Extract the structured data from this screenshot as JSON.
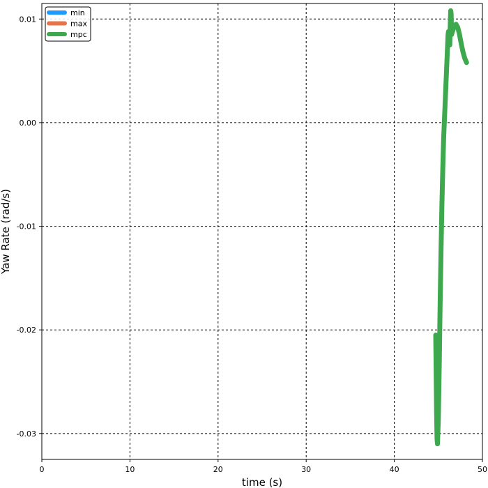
{
  "chart_data": {
    "type": "line",
    "title": "",
    "xlabel": "time (s)",
    "ylabel": "Yaw Rate (rad/s)",
    "xlim": [
      0,
      50
    ],
    "ylim": [
      -0.0325,
      0.0115
    ],
    "xticks": [
      0,
      10,
      20,
      30,
      40,
      50
    ],
    "xtick_labels": [
      "0",
      "10",
      "20",
      "30",
      "40",
      "50"
    ],
    "yticks": [
      0.01,
      0.0,
      -0.01,
      -0.02,
      -0.03
    ],
    "ytick_labels": [
      "0.01",
      "0.00",
      "-0.01",
      "-0.02",
      "-0.03"
    ],
    "grid": true,
    "grid_style": "dotted black",
    "legend_position": "top-left",
    "series": [
      {
        "name": "min",
        "color": "#1f9bff",
        "x": [],
        "y": []
      },
      {
        "name": "max",
        "color": "#e8734a",
        "x": [],
        "y": []
      },
      {
        "name": "mpc",
        "color": "#3da84e",
        "x": [
          44.7,
          44.8,
          44.85,
          44.9,
          45.0,
          45.1,
          45.2,
          45.3,
          45.4,
          45.5,
          45.6,
          45.7,
          45.8,
          45.9,
          46.0,
          46.1,
          46.15,
          46.2,
          46.3,
          46.35,
          46.4,
          46.45,
          46.5,
          46.6,
          46.8,
          47.0,
          47.2,
          47.4,
          47.6,
          47.8,
          48.0,
          48.2
        ],
        "y": [
          -0.0205,
          -0.028,
          -0.0305,
          -0.031,
          -0.0285,
          -0.0235,
          -0.0175,
          -0.0125,
          -0.008,
          -0.0045,
          -0.0015,
          0.0005,
          0.0025,
          0.0045,
          0.0065,
          0.0085,
          0.0088,
          0.0083,
          0.0075,
          0.0095,
          0.0108,
          0.0105,
          0.0085,
          0.0088,
          0.0093,
          0.0095,
          0.0092,
          0.0085,
          0.0076,
          0.0068,
          0.0062,
          0.0058
        ]
      }
    ]
  }
}
